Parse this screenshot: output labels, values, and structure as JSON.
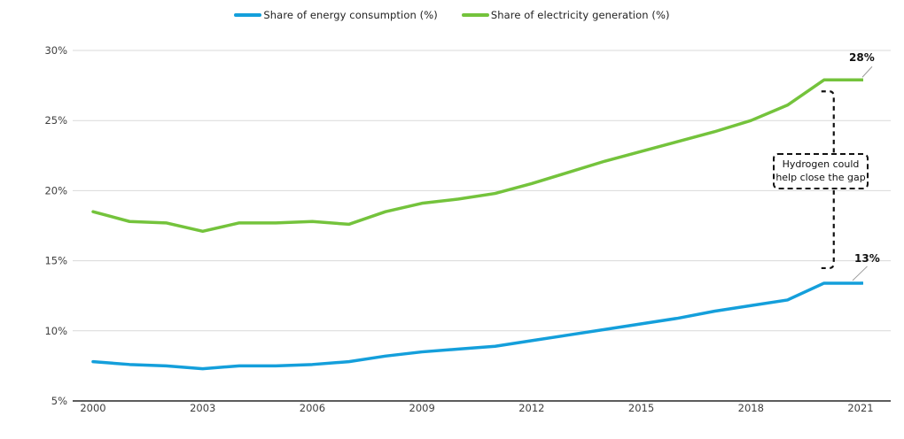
{
  "legend": {
    "series": [
      {
        "label": "Share of energy consumption (%)",
        "color": "#149fdb"
      },
      {
        "label": "Share of electricity generation (%)",
        "color": "#74c33c"
      }
    ]
  },
  "annotation": {
    "line1": "Hydrogen could",
    "line2": "help close the gap"
  },
  "end_labels": {
    "electricity": "28%",
    "energy": "13%"
  },
  "colors": {
    "energy_line": "#149fdb",
    "electricity_line": "#74c33c",
    "gridline": "#d9d9d9",
    "axis": "#262626",
    "tick_text": "#404040",
    "leader_line": "#9a9a9a",
    "annotation_dash": "#111111"
  },
  "chart_data": {
    "type": "line",
    "x": [
      2000,
      2001,
      2002,
      2003,
      2004,
      2005,
      2006,
      2007,
      2008,
      2009,
      2010,
      2011,
      2012,
      2013,
      2014,
      2015,
      2016,
      2017,
      2018,
      2019,
      2020,
      2021
    ],
    "series": [
      {
        "name": "Share of energy consumption (%)",
        "color": "#149fdb",
        "values": [
          7.8,
          7.6,
          7.5,
          7.3,
          7.5,
          7.5,
          7.6,
          7.8,
          8.2,
          8.5,
          8.7,
          8.9,
          9.3,
          9.7,
          10.1,
          10.5,
          10.9,
          11.4,
          11.8,
          12.2,
          13.4,
          13.4
        ]
      },
      {
        "name": "Share of electricity generation (%)",
        "color": "#74c33c",
        "values": [
          18.5,
          17.8,
          17.7,
          17.1,
          17.7,
          17.7,
          17.8,
          17.6,
          18.5,
          19.1,
          19.4,
          19.8,
          20.5,
          21.3,
          22.1,
          22.8,
          23.5,
          24.2,
          25.0,
          26.1,
          27.9,
          27.9
        ]
      }
    ],
    "xticks": [
      2000,
      2003,
      2006,
      2009,
      2012,
      2015,
      2018,
      2021
    ],
    "yticks": [
      30,
      25,
      20,
      15,
      10,
      5
    ],
    "ytick_suffix": "%",
    "ylim": [
      5,
      30
    ],
    "xlim": [
      2000,
      2021
    ],
    "grid": true,
    "legend_position": "top",
    "annotations": {
      "gap_label_text": "Hydrogen could help close the gap",
      "gap_between_year": 2020,
      "end_value_electricity": "28%",
      "end_value_energy": "13%"
    }
  }
}
